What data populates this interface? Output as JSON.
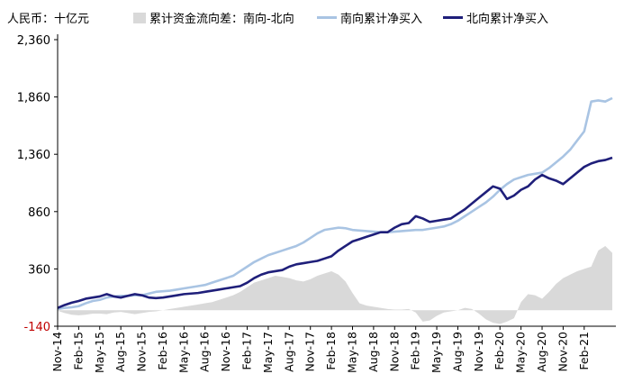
{
  "legend": {
    "unit": "人民币：十亿元",
    "area_label": "累计资金流向差：南向-北向",
    "south_label": "南向累计净买入",
    "north_label": "北向累计净买入"
  },
  "colors": {
    "area": "#d9d9d9",
    "south": "#a9c4e3",
    "north": "#1f1f7a",
    "negative_tick": "#c00000",
    "axis": "#000000"
  },
  "chart_data": {
    "type": "line",
    "ylim": [
      -140,
      2360
    ],
    "yticks": [
      2360,
      1860,
      1360,
      860,
      360,
      -140
    ],
    "xticks": [
      "Nov-14",
      "Feb-15",
      "May-15",
      "Aug-15",
      "Nov-15",
      "Feb-16",
      "May-16",
      "Aug-16",
      "Nov-16",
      "Feb-17",
      "May-17",
      "Aug-17",
      "Nov-17",
      "Feb-18",
      "May-18",
      "Aug-18",
      "Nov-18",
      "Feb-19",
      "May-19",
      "Aug-19",
      "Nov-19",
      "Feb-20",
      "May-20",
      "Aug-20",
      "Nov-20",
      "Feb-21"
    ],
    "x": [
      "Nov-14",
      "Dec-14",
      "Jan-15",
      "Feb-15",
      "Mar-15",
      "Apr-15",
      "May-15",
      "Jun-15",
      "Jul-15",
      "Aug-15",
      "Sep-15",
      "Oct-15",
      "Nov-15",
      "Dec-15",
      "Jan-16",
      "Feb-16",
      "Mar-16",
      "Apr-16",
      "May-16",
      "Jun-16",
      "Jul-16",
      "Aug-16",
      "Sep-16",
      "Oct-16",
      "Nov-16",
      "Dec-16",
      "Jan-17",
      "Feb-17",
      "Mar-17",
      "Apr-17",
      "May-17",
      "Jun-17",
      "Jul-17",
      "Aug-17",
      "Sep-17",
      "Oct-17",
      "Nov-17",
      "Dec-17",
      "Jan-18",
      "Feb-18",
      "Mar-18",
      "Apr-18",
      "May-18",
      "Jun-18",
      "Jul-18",
      "Aug-18",
      "Sep-18",
      "Oct-18",
      "Nov-18",
      "Dec-18",
      "Jan-19",
      "Feb-19",
      "Mar-19",
      "Apr-19",
      "May-19",
      "Jun-19",
      "Jul-19",
      "Aug-19",
      "Sep-19",
      "Oct-19",
      "Nov-19",
      "Dec-19",
      "Jan-20",
      "Feb-20",
      "Mar-20",
      "Apr-20",
      "May-20",
      "Jun-20",
      "Jul-20",
      "Aug-20",
      "Sep-20",
      "Oct-20",
      "Nov-20",
      "Dec-20",
      "Jan-21",
      "Feb-21",
      "Mar-21",
      "Apr-21",
      "May-21",
      "Jun-21"
    ],
    "series": [
      {
        "name": "累计资金流向差：南向-北向",
        "style": "area",
        "values": [
          -5,
          -25,
          -40,
          -45,
          -40,
          -30,
          -30,
          -35,
          -20,
          -15,
          -25,
          -35,
          -25,
          -15,
          -10,
          0,
          10,
          20,
          30,
          40,
          50,
          60,
          70,
          90,
          110,
          130,
          160,
          200,
          240,
          260,
          280,
          300,
          290,
          280,
          260,
          250,
          270,
          300,
          320,
          340,
          310,
          250,
          150,
          60,
          40,
          30,
          20,
          10,
          5,
          5,
          10,
          -20,
          -100,
          -90,
          -50,
          -20,
          -10,
          0,
          20,
          10,
          -30,
          -80,
          -110,
          -120,
          -100,
          -70,
          70,
          140,
          130,
          100,
          160,
          230,
          280,
          310,
          340,
          360,
          380,
          520,
          560,
          500
        ]
      },
      {
        "name": "南向累计净买入",
        "style": "line",
        "values": [
          10,
          20,
          25,
          35,
          60,
          80,
          90,
          110,
          120,
          125,
          125,
          130,
          130,
          145,
          160,
          165,
          170,
          180,
          190,
          200,
          210,
          220,
          240,
          260,
          280,
          300,
          340,
          380,
          420,
          450,
          480,
          500,
          520,
          540,
          560,
          590,
          630,
          670,
          700,
          710,
          720,
          715,
          700,
          695,
          690,
          685,
          680,
          680,
          685,
          690,
          695,
          700,
          700,
          710,
          720,
          730,
          750,
          780,
          820,
          860,
          900,
          940,
          990,
          1050,
          1100,
          1140,
          1160,
          1180,
          1190,
          1200,
          1240,
          1290,
          1340,
          1400,
          1480,
          1560,
          1820,
          1830,
          1820,
          1850
        ]
      },
      {
        "name": "北向累计净买入",
        "style": "line",
        "values": [
          20,
          45,
          65,
          80,
          100,
          110,
          120,
          140,
          120,
          110,
          125,
          140,
          130,
          110,
          105,
          110,
          120,
          130,
          140,
          145,
          150,
          160,
          170,
          180,
          190,
          200,
          210,
          240,
          280,
          310,
          330,
          340,
          350,
          380,
          400,
          410,
          420,
          430,
          450,
          470,
          520,
          560,
          600,
          620,
          640,
          660,
          680,
          680,
          720,
          750,
          760,
          820,
          800,
          770,
          780,
          790,
          800,
          840,
          880,
          930,
          980,
          1030,
          1080,
          1060,
          970,
          1000,
          1050,
          1080,
          1140,
          1180,
          1150,
          1130,
          1100,
          1150,
          1200,
          1250,
          1280,
          1300,
          1310,
          1330
        ]
      }
    ]
  }
}
